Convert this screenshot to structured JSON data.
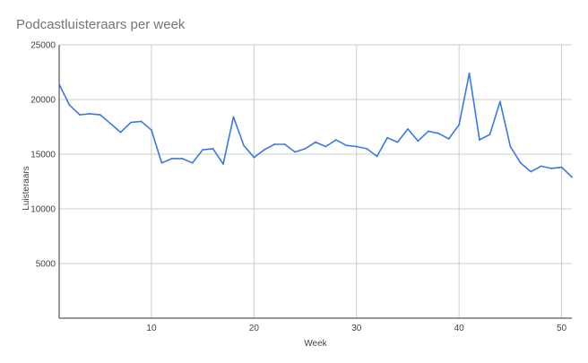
{
  "chart_data": {
    "type": "line",
    "title": "Podcastluisteraars per week",
    "xlabel": "Week",
    "ylabel": "Luisteraars",
    "xlim": [
      1,
      51
    ],
    "ylim": [
      0,
      25000
    ],
    "grid": true,
    "legend": "none",
    "x_ticks": [
      10,
      20,
      30,
      40,
      50
    ],
    "y_ticks": [
      5000,
      10000,
      15000,
      20000,
      25000
    ],
    "colors": {
      "line": "#3b78e7",
      "grid": "#cccccc",
      "axis": "#333333"
    },
    "series": [
      {
        "x": [
          1,
          2,
          3,
          4,
          5,
          6,
          7,
          8,
          9,
          10,
          11,
          12,
          13,
          14,
          15,
          16,
          17,
          18,
          19,
          20,
          21,
          22,
          23,
          24,
          25,
          26,
          27,
          28,
          29,
          30,
          31,
          32,
          33,
          34,
          35,
          36,
          37,
          38,
          39,
          40,
          41,
          42,
          43,
          44,
          45,
          46,
          47,
          48,
          49,
          50,
          51
        ],
        "values": [
          21400,
          19500,
          18600,
          18700,
          18600,
          17800,
          17000,
          17900,
          18000,
          17200,
          14200,
          14600,
          14600,
          14200,
          15400,
          15500,
          14100,
          18400,
          15800,
          14700,
          15400,
          15900,
          15900,
          15200,
          15500,
          16100,
          15700,
          16300,
          15800,
          15700,
          15500,
          14800,
          16500,
          16100,
          17300,
          16200,
          17100,
          16900,
          16400,
          17700,
          22400,
          16300,
          16800,
          19800,
          15700,
          14200,
          13400,
          13900,
          13700,
          13800,
          12900
        ]
      }
    ]
  }
}
